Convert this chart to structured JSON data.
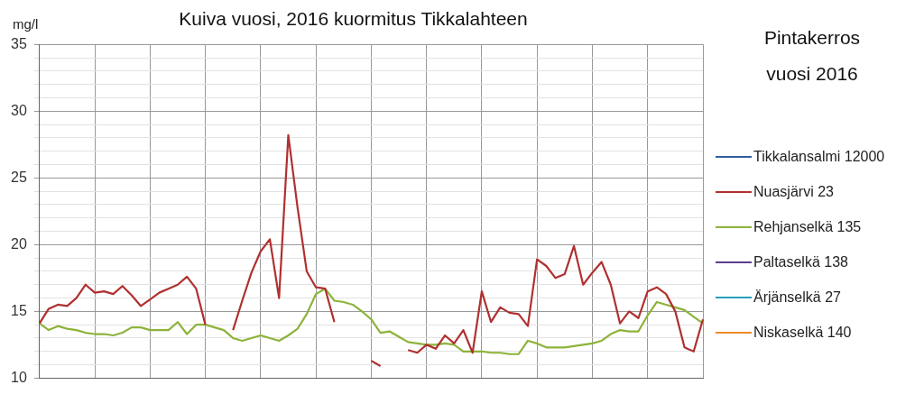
{
  "chart_data": {
    "type": "line",
    "title": "Kuiva vuosi, 2016 kuormitus Tikkalahteen",
    "ylabel": "mg/l",
    "legend_title": "Pintakerros vuosi 2016",
    "legend": "right",
    "grid": true,
    "marker": "none",
    "tick_labels": "y",
    "categories": [
      null,
      null,
      null,
      null,
      null,
      null,
      null,
      null,
      null,
      null,
      null,
      null,
      null,
      null,
      null,
      null,
      null,
      null,
      null,
      null,
      null,
      null,
      null,
      null,
      null,
      null,
      null,
      null,
      null,
      null,
      null,
      null,
      null,
      null,
      null,
      null,
      null,
      null,
      null,
      null,
      null,
      null,
      null,
      null,
      null,
      null,
      null,
      null,
      null,
      null,
      null,
      null,
      null,
      null,
      null,
      null,
      null,
      null,
      null,
      null,
      null,
      null,
      null,
      null,
      null,
      null,
      null,
      null,
      null,
      null,
      null,
      null,
      null
    ],
    "ylim": [
      10,
      35
    ],
    "yticks": [
      10,
      {
        "value": 11,
        "label": null
      },
      {
        "value": 12,
        "label": null
      },
      {
        "value": 13,
        "label": null
      },
      {
        "value": 14,
        "label": null
      },
      15,
      {
        "value": 16,
        "label": null
      },
      {
        "value": 17,
        "label": null
      },
      {
        "value": 18,
        "label": null
      },
      {
        "value": 19,
        "label": null
      },
      20,
      {
        "value": 21,
        "label": null
      },
      {
        "value": 22,
        "label": null
      },
      {
        "value": 23,
        "label": null
      },
      {
        "value": 24,
        "label": null
      },
      25,
      {
        "value": 26,
        "label": null
      },
      {
        "value": 27,
        "label": null
      },
      {
        "value": 28,
        "label": null
      },
      {
        "value": 29,
        "label": null
      },
      30,
      {
        "value": 31,
        "label": null
      },
      {
        "value": 32,
        "label": null
      },
      {
        "value": 33,
        "label": null
      },
      {
        "value": 34,
        "label": null
      },
      35
    ],
    "series": [
      {
        "name": "Tikkalansalmi 12000",
        "color": "#2e5fa3",
        "values": [
          null,
          null,
          null,
          null,
          null,
          null,
          null,
          null,
          null,
          null,
          null,
          null,
          null,
          null,
          null,
          null,
          null,
          null,
          null,
          null,
          null,
          null,
          null,
          null,
          null,
          null,
          null,
          null,
          null,
          null,
          null,
          null,
          null,
          null,
          null,
          null,
          null,
          null,
          null,
          null,
          null,
          null,
          null,
          null,
          null,
          null,
          null,
          null,
          null,
          null,
          null,
          null,
          null,
          null,
          null,
          null,
          null,
          null,
          null,
          null,
          null,
          null,
          null,
          null,
          null,
          null,
          null,
          null,
          null,
          null,
          null,
          null,
          null
        ]
      },
      {
        "name": "Nuasjärvi 23",
        "color": "#b03030",
        "values": [
          14.1,
          15.2,
          15.5,
          15.4,
          16.0,
          17.0,
          16.4,
          16.5,
          16.3,
          16.9,
          16.2,
          15.4,
          15.9,
          16.4,
          16.7,
          17.0,
          17.6,
          16.7,
          14.0,
          null,
          null,
          13.6,
          15.8,
          17.9,
          19.5,
          20.4,
          16.0,
          28.2,
          22.8,
          18.0,
          16.8,
          16.7,
          14.2,
          null,
          null,
          null,
          11.3,
          10.9,
          null,
          null,
          12.1,
          11.9,
          12.5,
          12.2,
          13.2,
          12.6,
          13.6,
          11.9,
          16.5,
          14.2,
          15.3,
          14.9,
          14.8,
          13.9,
          18.9,
          18.4,
          17.5,
          17.8,
          19.9,
          17.0,
          17.9,
          18.7,
          17.0,
          14.1,
          15.0,
          14.5,
          16.5,
          16.8,
          16.3,
          15.0,
          12.3,
          12.0,
          14.4
        ]
      },
      {
        "name": "Rehjanselkä 135",
        "color": "#8db33a",
        "values": [
          14.1,
          13.6,
          13.9,
          13.7,
          13.6,
          13.4,
          13.3,
          13.3,
          13.2,
          13.4,
          13.8,
          13.8,
          13.6,
          13.6,
          13.6,
          14.2,
          13.3,
          14.0,
          14.0,
          13.8,
          13.6,
          13.0,
          12.8,
          13.0,
          13.2,
          13.0,
          12.8,
          13.2,
          13.7,
          14.8,
          16.3,
          16.7,
          15.8,
          15.7,
          15.5,
          15.0,
          14.4,
          13.4,
          13.5,
          13.1,
          12.7,
          12.6,
          12.5,
          12.5,
          12.6,
          12.5,
          12.0,
          12.0,
          12.0,
          11.9,
          11.9,
          11.8,
          11.8,
          12.8,
          12.6,
          12.3,
          12.3,
          12.3,
          12.4,
          12.5,
          12.6,
          12.8,
          13.3,
          13.6,
          13.5,
          13.5,
          14.7,
          15.7,
          15.5,
          15.3,
          15.1,
          14.6,
          14.1
        ]
      },
      {
        "name": "Paltaselkä 138",
        "color": "#5b3c8f",
        "values": [
          null,
          null,
          null,
          null,
          null,
          null,
          null,
          null,
          null,
          null,
          null,
          null,
          null,
          null,
          null,
          null,
          null,
          null,
          null,
          null,
          null,
          null,
          null,
          null,
          null,
          null,
          null,
          null,
          null,
          null,
          null,
          null,
          null,
          null,
          null,
          null,
          null,
          null,
          null,
          null,
          null,
          null,
          null,
          null,
          null,
          null,
          null,
          null,
          null,
          null,
          null,
          null,
          null,
          null,
          null,
          null,
          null,
          null,
          null,
          null,
          null,
          null,
          null,
          null,
          null,
          null,
          null,
          null,
          null,
          null,
          null,
          null,
          null
        ]
      },
      {
        "name": "Ärjänselkä 27",
        "color": "#2aa0b8",
        "values": [
          null,
          null,
          null,
          null,
          null,
          null,
          null,
          null,
          null,
          null,
          null,
          null,
          null,
          null,
          null,
          null,
          null,
          null,
          null,
          null,
          null,
          null,
          null,
          null,
          null,
          null,
          null,
          null,
          null,
          null,
          null,
          null,
          null,
          null,
          null,
          null,
          null,
          null,
          null,
          null,
          null,
          null,
          null,
          null,
          null,
          null,
          null,
          null,
          null,
          null,
          null,
          null,
          null,
          null,
          null,
          null,
          null,
          null,
          null,
          null,
          null,
          null,
          null,
          null,
          null,
          null,
          null,
          null,
          null,
          null,
          null,
          null,
          null
        ]
      },
      {
        "name": "Niskaselkä 140",
        "color": "#f08a2a",
        "values": [
          null,
          null,
          null,
          null,
          null,
          null,
          null,
          null,
          null,
          null,
          null,
          null,
          null,
          null,
          null,
          null,
          null,
          null,
          null,
          null,
          null,
          null,
          null,
          null,
          null,
          null,
          null,
          null,
          null,
          null,
          null,
          null,
          null,
          null,
          null,
          null,
          null,
          null,
          null,
          null,
          null,
          null,
          null,
          null,
          null,
          null,
          null,
          null,
          null,
          null,
          null,
          null,
          null,
          null,
          null,
          null,
          null,
          null,
          null,
          null,
          null,
          null,
          null,
          null,
          null,
          null,
          null,
          null,
          null,
          null,
          null,
          null,
          null
        ]
      }
    ]
  }
}
